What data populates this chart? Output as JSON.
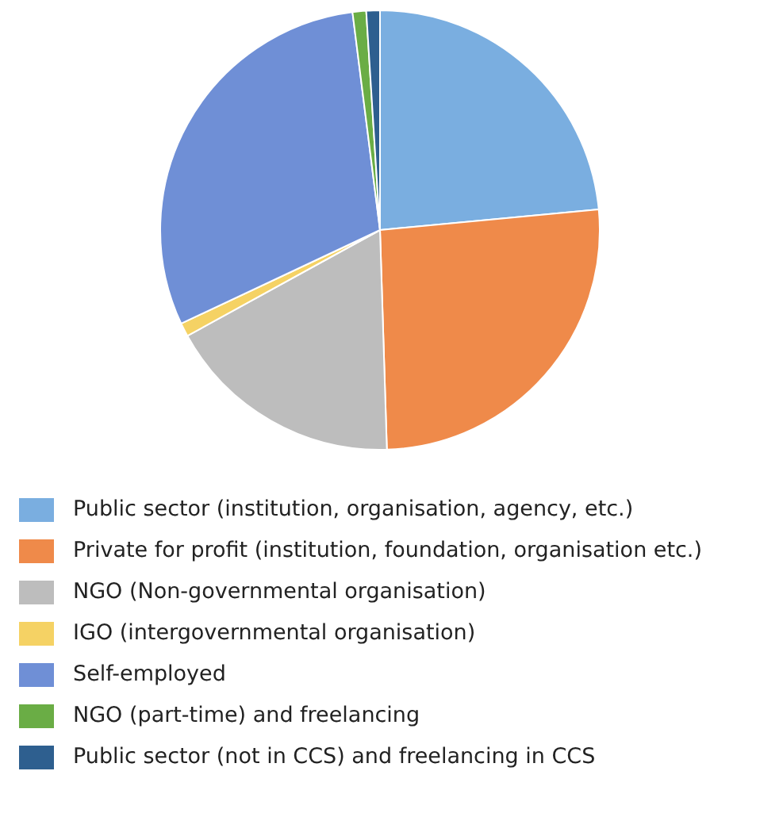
{
  "chart_data": {
    "type": "pie",
    "categories": [
      "Public sector (institution, organisation, agency, etc.)",
      "Private for profit (institution, foundation, organisation etc.)",
      "NGO (Non-governmental organisation)",
      "IGO (intergovernmental organisation)",
      "Self-employed",
      "NGO (part-time) and freelancing",
      "Public sector (not in CCS) and freelancing in CCS"
    ],
    "values": [
      23.5,
      26,
      17.5,
      1,
      30,
      1,
      1
    ],
    "colors": [
      "#7aaee0",
      "#ef8a4a",
      "#bdbdbd",
      "#f5d264",
      "#6f8fd6",
      "#6aad45",
      "#2e5f8f"
    ],
    "legend": "bottom"
  }
}
